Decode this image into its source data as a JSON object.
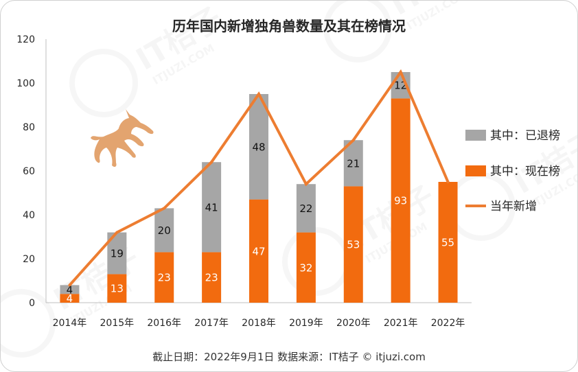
{
  "chart_data": {
    "type": "bar",
    "title": "历年国内新增独角兽数量及其在榜情况",
    "categories": [
      "2014年",
      "2015年",
      "2016年",
      "2017年",
      "2018年",
      "2019年",
      "2020年",
      "2021年",
      "2022年"
    ],
    "series": [
      {
        "name": "其中：现在榜",
        "kind": "bar",
        "stack": "main",
        "color": "#F26B0F",
        "values": [
          4,
          13,
          23,
          23,
          47,
          32,
          53,
          93,
          55
        ]
      },
      {
        "name": "其中：已退榜",
        "kind": "bar",
        "stack": "main",
        "color": "#A6A6A6",
        "values": [
          4,
          19,
          20,
          41,
          48,
          22,
          21,
          12,
          null
        ]
      },
      {
        "name": "当年新增",
        "kind": "line",
        "color": "#ED7D31",
        "values": [
          8,
          32,
          43,
          64,
          95,
          54,
          74,
          105,
          55
        ]
      }
    ],
    "ylim": [
      0,
      120
    ],
    "yticks": [
      0,
      20,
      40,
      60,
      80,
      100,
      120
    ],
    "grid": false,
    "legend_position": "right"
  },
  "footer": {
    "text": "截止日期：2022年9月1日    数据来源：IT桔子 © itjuzi.com"
  },
  "watermark": {
    "brand": "IT桔子",
    "site": "ITJUZI.COM"
  },
  "decoration": {
    "icon": "unicorn-icon",
    "icon_color": "#E3A46F"
  }
}
